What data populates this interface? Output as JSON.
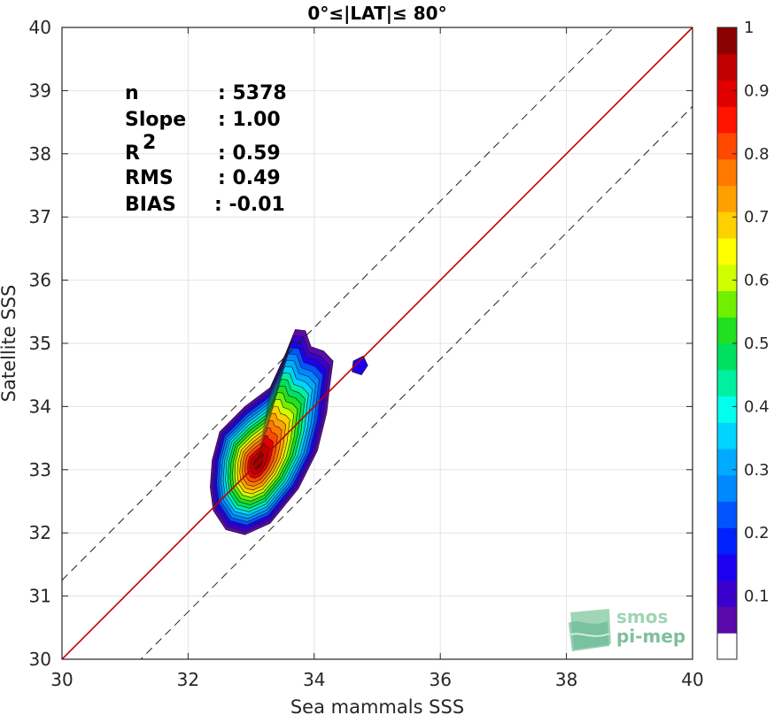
{
  "chart_data": {
    "type": "scatter",
    "title": "0°≤|LAT|≤ 80°",
    "xlabel": "Sea mammals SSS",
    "ylabel": "Satellite SSS",
    "xlim": [
      30,
      40
    ],
    "ylim": [
      30,
      40
    ],
    "xticks": [
      "30",
      "32",
      "34",
      "36",
      "38",
      "40"
    ],
    "yticks": [
      "30",
      "31",
      "32",
      "33",
      "34",
      "35",
      "36",
      "37",
      "38",
      "39",
      "40"
    ],
    "grid": true,
    "reference_lines": [
      {
        "kind": "one-to-one",
        "slope": 1,
        "intercept": 0,
        "color": "#c00000"
      },
      {
        "kind": "offset",
        "slope": 1,
        "intercept": 1.25,
        "style": "dashed"
      },
      {
        "kind": "offset",
        "slope": 1,
        "intercept": -1.25,
        "style": "dashed"
      }
    ],
    "density": {
      "center": [
        33.1,
        33.1
      ],
      "levels": [
        0.05,
        0.1,
        0.15,
        0.2,
        0.25,
        0.3,
        0.35,
        0.4,
        0.45,
        0.5,
        0.55,
        0.6,
        0.65,
        0.7,
        0.75,
        0.8,
        0.85,
        0.9,
        0.95
      ],
      "outer_extent": {
        "x": [
          32.35,
          34.85
        ],
        "y": [
          31.95,
          35.25
        ]
      }
    },
    "stats": [
      {
        "label": "n",
        "value": ": 5378"
      },
      {
        "label": "Slope",
        "value": ": 1.00"
      },
      {
        "label": "R",
        "sup": "2",
        "value": ": 0.59"
      },
      {
        "label": "RMS",
        "value": ": 0.49"
      },
      {
        "label": "BIAS",
        "value": ": -0.01"
      }
    ],
    "colorbar": {
      "range": [
        0,
        1
      ],
      "ticks": [
        "0.1",
        "0.2",
        "0.3",
        "0.4",
        "0.5",
        "0.6",
        "0.7",
        "0.8",
        "0.9",
        "1"
      ],
      "colors": [
        "#ffffff",
        "#5a0aaa",
        "#3a00cc",
        "#1e00f0",
        "#0022ff",
        "#0055ff",
        "#0088ff",
        "#00aaff",
        "#00d4ff",
        "#00ffee",
        "#00f0a0",
        "#00e060",
        "#20e020",
        "#70f000",
        "#d0ff00",
        "#ffff00",
        "#ffd000",
        "#ffa000",
        "#ff7800",
        "#ff4800",
        "#ff1400",
        "#e00000",
        "#c00000",
        "#8b0000"
      ]
    }
  },
  "logo": {
    "line1": "smos",
    "line2": "pi-mep"
  }
}
